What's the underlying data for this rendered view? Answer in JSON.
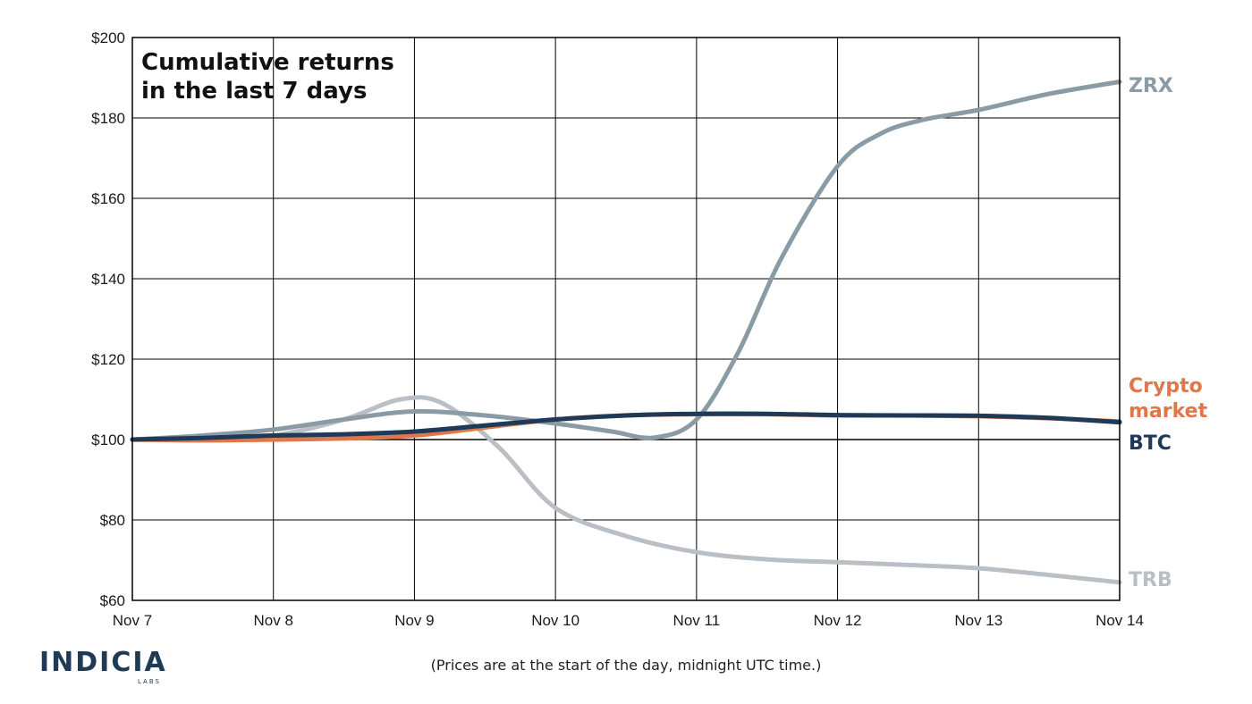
{
  "chart_data": {
    "type": "line",
    "title_lines": [
      "Cumulative returns",
      "in the last 7 days"
    ],
    "xlabel": "",
    "ylabel": "",
    "x_ticks": [
      "Nov 7",
      "Nov 8",
      "Nov 9",
      "Nov 10",
      "Nov 11",
      "Nov 12",
      "Nov 13",
      "Nov 14"
    ],
    "y_ticks": [
      "$60",
      "$80",
      "$100",
      "$120",
      "$140",
      "$160",
      "$180",
      "$200"
    ],
    "ylim": [
      60,
      200
    ],
    "xlim": [
      0,
      7
    ],
    "grid": true,
    "reference_line": 100,
    "series": [
      {
        "name": "TRB",
        "color": "#b9bfc4",
        "points": [
          [
            0,
            100
          ],
          [
            0.5,
            100.3
          ],
          [
            1,
            101
          ],
          [
            1.5,
            105
          ],
          [
            1.9,
            110
          ],
          [
            2.2,
            109
          ],
          [
            2.6,
            98
          ],
          [
            3,
            83
          ],
          [
            3.5,
            76
          ],
          [
            4,
            72
          ],
          [
            4.5,
            70.2
          ],
          [
            5,
            69.5
          ],
          [
            5.5,
            68.8
          ],
          [
            6,
            68
          ],
          [
            6.5,
            66.3
          ],
          [
            7,
            64.5
          ]
        ]
      },
      {
        "name": "ZRX",
        "color": "#8a9ba6",
        "points": [
          [
            0,
            100
          ],
          [
            0.5,
            101
          ],
          [
            1,
            102.5
          ],
          [
            1.5,
            105
          ],
          [
            2,
            107
          ],
          [
            2.5,
            106
          ],
          [
            3,
            104
          ],
          [
            3.4,
            102
          ],
          [
            3.7,
            100.5
          ],
          [
            4,
            105
          ],
          [
            4.3,
            122
          ],
          [
            4.6,
            145
          ],
          [
            5,
            168
          ],
          [
            5.3,
            176
          ],
          [
            5.6,
            179.5
          ],
          [
            6,
            182
          ],
          [
            6.5,
            186
          ],
          [
            7,
            189
          ]
        ]
      },
      {
        "name": "Crypto market",
        "color": "#e0774a",
        "points": [
          [
            0,
            100
          ],
          [
            0.5,
            99.8
          ],
          [
            1,
            100
          ],
          [
            1.5,
            100.3
          ],
          [
            2,
            101
          ],
          [
            2.5,
            103
          ],
          [
            3,
            105
          ],
          [
            3.5,
            106
          ],
          [
            4,
            106.3
          ],
          [
            4.5,
            106.3
          ],
          [
            5,
            106
          ],
          [
            5.5,
            106
          ],
          [
            6,
            105.8
          ],
          [
            6.5,
            105.3
          ],
          [
            7,
            104.5
          ]
        ]
      },
      {
        "name": "BTC",
        "color": "#1e3a58",
        "points": [
          [
            0,
            100
          ],
          [
            0.5,
            100.4
          ],
          [
            1,
            101
          ],
          [
            1.5,
            101.3
          ],
          [
            2,
            102
          ],
          [
            2.5,
            103.5
          ],
          [
            3,
            105
          ],
          [
            3.5,
            106
          ],
          [
            4,
            106.4
          ],
          [
            4.5,
            106.4
          ],
          [
            5,
            106.1
          ],
          [
            5.5,
            106
          ],
          [
            6,
            105.9
          ],
          [
            6.5,
            105.4
          ],
          [
            7,
            104.3
          ]
        ]
      }
    ],
    "series_labels": [
      {
        "lines": [
          "ZRX"
        ],
        "color": "#8a9ba6"
      },
      {
        "lines": [
          "Crypto",
          "market"
        ],
        "color": "#e0774a"
      },
      {
        "lines": [
          "BTC"
        ],
        "color": "#1e3a58"
      },
      {
        "lines": [
          "TRB"
        ],
        "color": "#b9bfc4"
      }
    ],
    "footnote": "(Prices are at the start of the day, midnight UTC time.)"
  },
  "logo": {
    "word": "INDICIA",
    "sub": "LABS",
    "color": "#1f3a55"
  }
}
